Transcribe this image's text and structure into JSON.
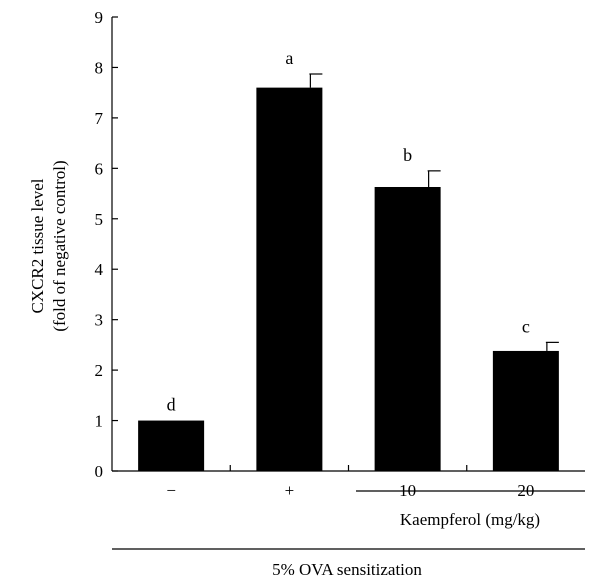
{
  "chart_data": {
    "type": "bar",
    "categories": [
      "−",
      "+",
      "10",
      "20"
    ],
    "values": [
      1.0,
      7.6,
      5.63,
      2.38
    ],
    "errors": [
      0.0,
      0.27,
      0.32,
      0.17
    ],
    "significance": [
      "d",
      "a",
      "b",
      "c"
    ],
    "ylabel_line1": "CXCR2 tissue level",
    "ylabel_line2": "(fold of negative control)",
    "ylim": [
      0,
      9
    ],
    "yticks": [
      "0",
      "1",
      "2",
      "3",
      "4",
      "5",
      "6",
      "7",
      "8",
      "9"
    ],
    "group_labels": {
      "treatment": "Kaempferol (mg/kg)",
      "sensitization": "5% OVA sensitization"
    },
    "bar_color": "#000000",
    "grid": false,
    "legend": "none"
  }
}
